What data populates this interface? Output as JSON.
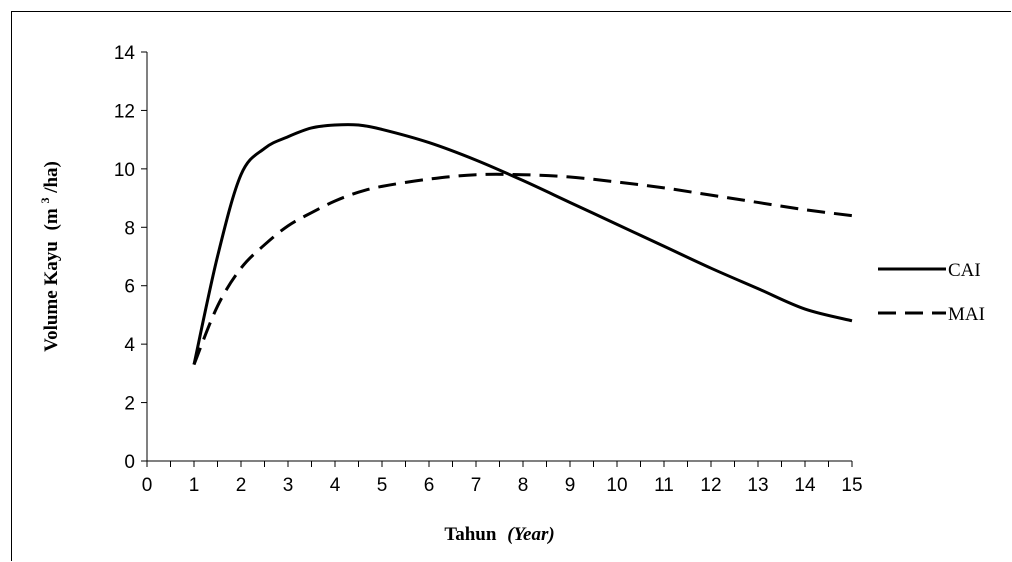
{
  "chart_data": {
    "type": "line",
    "xlabel": "Tahun",
    "xlabel_suffix": "(Year)",
    "ylabel": "Volume Kayu",
    "ylabel_unit_pre": "(m",
    "ylabel_unit_sup": "3",
    "ylabel_unit_post": "/ha)",
    "xlim": [
      0,
      15
    ],
    "ylim": [
      0,
      14
    ],
    "xticks": [
      0,
      1,
      2,
      3,
      4,
      5,
      6,
      7,
      8,
      9,
      10,
      11,
      12,
      13,
      14,
      15
    ],
    "yticks": [
      0,
      2,
      4,
      6,
      8,
      10,
      12,
      14
    ],
    "grid": false,
    "legend_position": "right",
    "series": [
      {
        "name": "CAI",
        "style": "solid",
        "color": "#000000",
        "x": [
          1,
          1.5,
          2,
          2.5,
          3,
          3.5,
          4,
          4.5,
          5,
          6,
          7,
          8,
          9,
          10,
          11,
          12,
          13,
          14,
          15
        ],
        "y": [
          3.3,
          7.0,
          9.8,
          10.7,
          11.1,
          11.4,
          11.5,
          11.5,
          11.35,
          10.9,
          10.3,
          9.6,
          8.85,
          8.1,
          7.35,
          6.6,
          5.9,
          5.2,
          4.8
        ]
      },
      {
        "name": "MAI",
        "style": "dashed",
        "color": "#000000",
        "x": [
          1,
          1.5,
          2,
          2.5,
          3,
          3.5,
          4,
          4.5,
          5,
          6,
          7,
          8,
          9,
          10,
          11,
          12,
          13,
          14,
          15
        ],
        "y": [
          3.3,
          5.3,
          6.6,
          7.4,
          8.05,
          8.5,
          8.9,
          9.2,
          9.4,
          9.65,
          9.8,
          9.8,
          9.72,
          9.55,
          9.35,
          9.1,
          8.85,
          8.6,
          8.4
        ]
      }
    ]
  }
}
